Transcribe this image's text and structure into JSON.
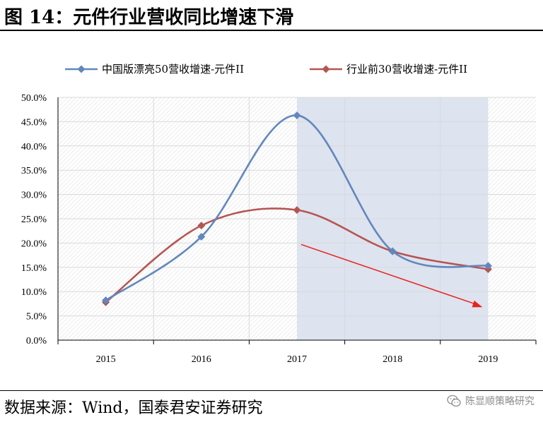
{
  "header": {
    "title": "图 14：元件行业营收同比增速下滑"
  },
  "footer": {
    "source": "数据来源：Wind，国泰君安证券研究",
    "watermark": "陈显顺策略研究",
    "watermark_icon": "wechat-icon"
  },
  "chart_data": {
    "type": "line",
    "categories": [
      "2015",
      "2016",
      "2017",
      "2018",
      "2019"
    ],
    "y_ticks": [
      "0.0%",
      "5.0%",
      "10.0%",
      "15.0%",
      "20.0%",
      "25.0%",
      "30.0%",
      "35.0%",
      "40.0%",
      "45.0%",
      "50.0%"
    ],
    "ylim": [
      0,
      50
    ],
    "y_unit": "%",
    "grid": true,
    "legend_position": "top",
    "shaded_region": [
      "2017",
      "2019"
    ],
    "shade_color": "#dde3ef",
    "series": [
      {
        "name": "中国版漂亮50营收增速-元件II",
        "color": "#6287bd",
        "marker": "diamond",
        "values": [
          8.2,
          21.3,
          46.3,
          18.3,
          15.3
        ]
      },
      {
        "name": "行业前30营收增速-元件II",
        "color": "#b55552",
        "marker": "diamond",
        "values": [
          7.8,
          23.6,
          26.8,
          18.3,
          14.6
        ]
      }
    ],
    "annotation": {
      "type": "arrow",
      "color": "#e8231c",
      "from": [
        "2017",
        19.7
      ],
      "to": [
        "2019",
        6.8
      ]
    }
  }
}
